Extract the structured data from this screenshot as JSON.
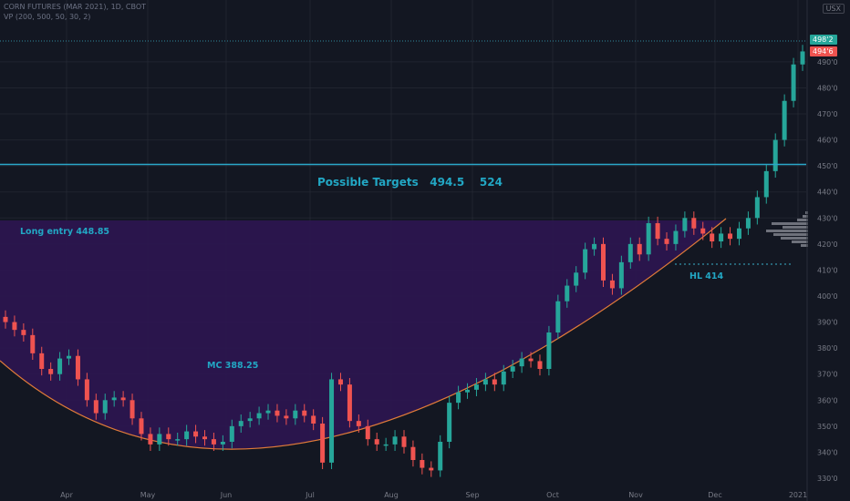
{
  "header": {
    "symbol_line": "CORN FUTURES (MAR 2021), 1D, CBOT",
    "indicator_line": "VP (200, 500, 50, 30, 2)",
    "currency_badge": "USX"
  },
  "annotations": {
    "targets": "Possible Targets   494.5    524",
    "long_entry": "Long entry 448.85",
    "mc": "MC 388.25",
    "hl": "HL 414"
  },
  "colors": {
    "background": "#131722",
    "up": "#26a69a",
    "down": "#ef5350",
    "zone": "#2d1650",
    "curve": "#e07b39",
    "entry_line": "#2aa8c9",
    "label": "#22a7c4"
  },
  "chart_data": {
    "type": "candlestick",
    "title": "CORN FUTURES (MAR 2021), 1D, CBOT",
    "y_ticks": [
      "330'0",
      "340'0",
      "350'0",
      "360'0",
      "370'0",
      "380'0",
      "390'0",
      "400'0",
      "410'0",
      "420'0",
      "430'0",
      "440'0",
      "450'0",
      "460'0",
      "470'0",
      "480'0",
      "490'0"
    ],
    "x_ticks": [
      "Apr",
      "May",
      "Jun",
      "Jul",
      "Aug",
      "Sep",
      "Oct",
      "Nov",
      "Dec",
      "2021"
    ],
    "ylim": [
      326,
      500
    ],
    "price_tags": [
      "498'2",
      "494'6"
    ],
    "levels": {
      "long_entry": 448.85,
      "higher_low": 414,
      "mc": 388.25,
      "targets": [
        494.5,
        524
      ]
    },
    "series": [
      {
        "values": [
          390,
          387,
          385,
          378,
          372,
          370,
          376,
          377,
          368,
          360,
          355,
          360,
          361,
          360,
          353,
          347,
          343,
          347,
          345,
          345,
          348,
          346,
          345,
          343,
          344,
          350,
          352,
          353,
          355,
          356,
          354,
          353,
          356,
          354,
          351,
          336,
          368,
          366,
          352,
          350,
          345,
          343,
          343,
          346,
          342,
          337,
          334,
          333,
          344,
          359,
          363,
          364,
          366,
          368,
          366,
          371,
          373,
          376,
          375,
          372,
          386,
          398,
          404,
          409,
          418,
          420,
          406,
          403,
          413,
          420,
          416,
          428,
          422,
          420,
          425,
          430,
          426,
          424,
          421,
          424,
          422,
          426,
          430,
          438,
          448,
          460,
          475,
          489,
          494
        ]
      }
    ]
  }
}
